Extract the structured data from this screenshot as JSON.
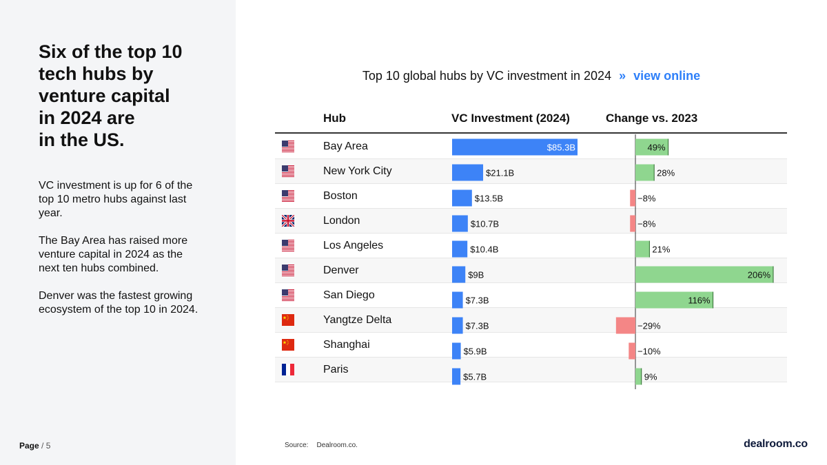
{
  "headline": "Six of the top 10\ntech hubs by\nventure capital\nin 2024 are\nin the US.",
  "paragraphs": [
    "VC investment is up for 6 of the top 10 metro hubs against last year.",
    "The Bay Area has raised more venture capital in 2024 as the next ten hubs combined.",
    "Denver was the fastest growing ecosystem of the top 10 in 2024."
  ],
  "footer": {
    "page_label": "Page",
    "page_number": "/ 5",
    "source_label": "Source:",
    "source_value": "Dealroom.co.",
    "logo": "dealroom.co"
  },
  "table_title": {
    "text": "Top 10 global hubs by VC investment in 2024",
    "chevron": "»",
    "link": "view online"
  },
  "columns": {
    "hub": "Hub",
    "investment": "VC Investment (2024)",
    "change": "Change vs. 2023"
  },
  "colors": {
    "investment_bar": "#3d83f7",
    "positive_change": "#8fd68f",
    "negative_change": "#f48686",
    "link": "#2d7ff9"
  },
  "chart_data": {
    "type": "table",
    "categories": [
      "Bay Area",
      "New York City",
      "Boston",
      "London",
      "Los Angeles",
      "Denver",
      "San Diego",
      "Yangtze Delta",
      "Shanghai",
      "Paris"
    ],
    "flags": [
      "us",
      "us",
      "us",
      "uk",
      "us",
      "us",
      "us",
      "cn",
      "cn",
      "fr"
    ],
    "series": [
      {
        "name": "VC Investment (2024)",
        "values": [
          85.3,
          21.1,
          13.5,
          10.7,
          10.4,
          9,
          7.3,
          7.3,
          5.9,
          5.7
        ],
        "labels": [
          "$85.3B",
          "$21.1B",
          "$13.5B",
          "$10.7B",
          "$10.4B",
          "$9B",
          "$7.3B",
          "$7.3B",
          "$5.9B",
          "$5.7B"
        ]
      },
      {
        "name": "Change vs. 2023",
        "values": [
          49,
          28,
          -8,
          -8,
          21,
          206,
          116,
          -29,
          -10,
          9
        ],
        "labels": [
          "49%",
          "28%",
          "−8%",
          "−8%",
          "21%",
          "206%",
          "116%",
          "−29%",
          "−10%",
          "9%"
        ]
      }
    ]
  }
}
